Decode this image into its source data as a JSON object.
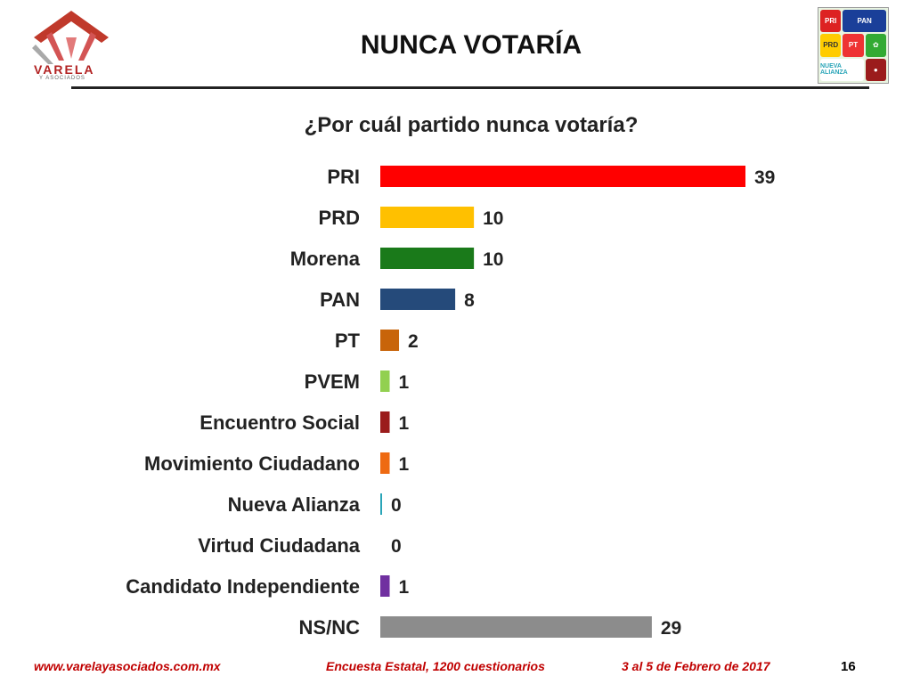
{
  "header": {
    "logo_text": "VARELA",
    "logo_subtext": "Y ASOCIADOS",
    "title": "NUNCA VOTARÍA"
  },
  "party_logos": [
    "PRI",
    "PAN",
    "PRD",
    "PT",
    "NUEVA ALIANZA"
  ],
  "chart_data": {
    "type": "bar",
    "orientation": "horizontal",
    "title": "¿Por cuál partido nunca votaría?",
    "xlabel": "",
    "ylabel": "",
    "xlim": [
      0,
      45
    ],
    "grid": false,
    "categories": [
      "PRI",
      "PRD",
      "Morena",
      "PAN",
      "PT",
      "PVEM",
      "Encuentro Social",
      "Movimiento Ciudadano",
      "Nueva Alianza",
      "Virtud Ciudadana",
      "Candidato Independiente",
      "NS/NC"
    ],
    "values": [
      39,
      10,
      10,
      8,
      2,
      1,
      1,
      1,
      0,
      0,
      1,
      29
    ],
    "colors": [
      "#ff0000",
      "#ffc000",
      "#1a7a1a",
      "#254a7a",
      "#c8640a",
      "#92d050",
      "#9b1c1c",
      "#ee6a12",
      "#2aa5b8",
      "#ffffff",
      "#7030a0",
      "#8c8c8c"
    ]
  },
  "footer": {
    "website": "www.varelayasociados.com.mx",
    "survey": "Encuesta Estatal, 1200 cuestionarios",
    "date": "3 al 5 de Febrero de 2017",
    "page": "16"
  }
}
